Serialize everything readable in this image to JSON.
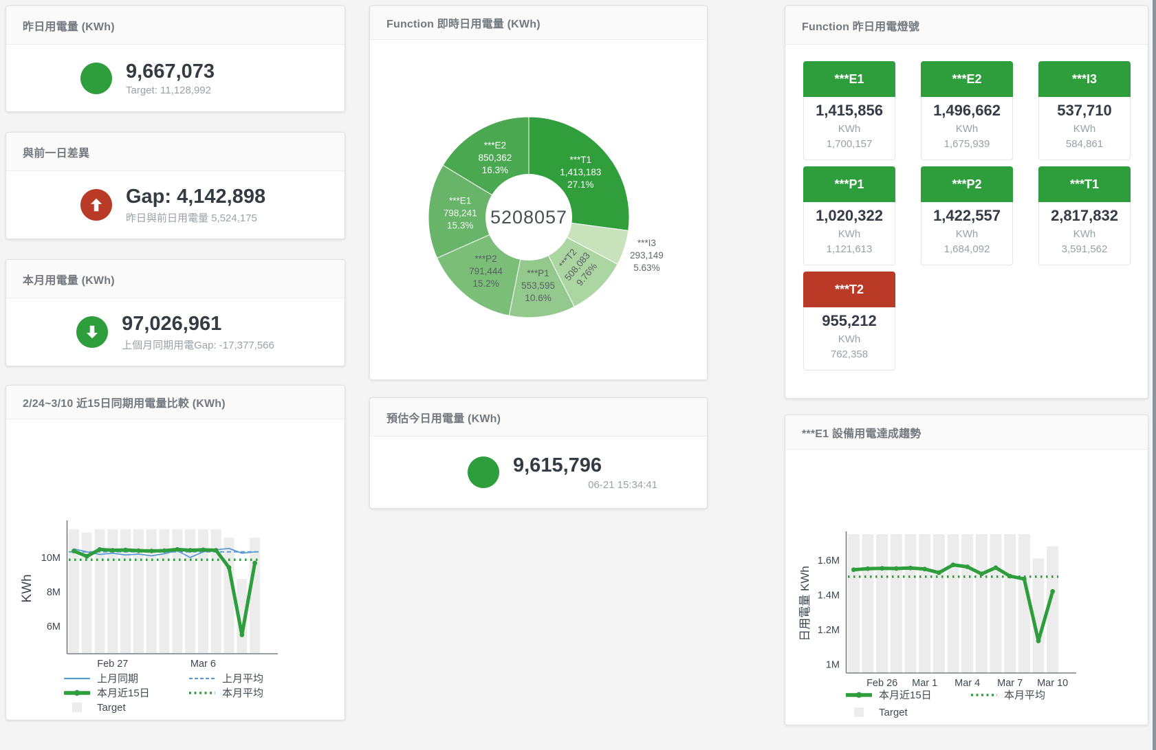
{
  "colors": {
    "green": "#2e9d3c",
    "red": "#b93a26",
    "blue": "#5b9bd5",
    "target_bar": "#ececec",
    "axis": "#7a7f84",
    "tick_text": "#3d4752",
    "legend_text": "#434a52"
  },
  "cards": {
    "yesterday": {
      "title": "昨日用電量 (KWh)",
      "value": "9,667,073",
      "subtitle": "Target: 11,128,992",
      "status": "green"
    },
    "gap": {
      "title": "與前一日差異",
      "value": "Gap: 4,142,898",
      "subtitle": "昨日與前日用電量 5,524,175",
      "status": "red-up"
    },
    "month": {
      "title": "本月用電量 (KWh)",
      "value": "97,026,961",
      "subtitle": "上個月同期用電Gap: -17,377,566",
      "status": "green-down"
    },
    "estimate": {
      "title": "預估今日用電量 (KWh)",
      "value": "9,615,796",
      "subtitle": "06-21 15:34:41",
      "status": "green"
    },
    "compare15": {
      "title": "2/24~3/10 近15日同期用電量比較 (KWh)"
    },
    "donut": {
      "title": "Function 即時日用電量 (KWh)"
    },
    "lamp": {
      "title": "Function 昨日用電燈號"
    },
    "trend": {
      "title": "***E1 設備用電達成趨勢"
    }
  },
  "lamp_tiles": [
    {
      "label": "***E1",
      "value": "1,415,856",
      "unit": "KWh",
      "target": "1,700,157",
      "status": "green"
    },
    {
      "label": "***E2",
      "value": "1,496,662",
      "unit": "KWh",
      "target": "1,675,939",
      "status": "green"
    },
    {
      "label": "***I3",
      "value": "537,710",
      "unit": "KWh",
      "target": "584,861",
      "status": "green"
    },
    {
      "label": "***P1",
      "value": "1,020,322",
      "unit": "KWh",
      "target": "1,121,613",
      "status": "green"
    },
    {
      "label": "***P2",
      "value": "1,422,557",
      "unit": "KWh",
      "target": "1,684,092",
      "status": "green"
    },
    {
      "label": "***T1",
      "value": "2,817,832",
      "unit": "KWh",
      "target": "3,591,562",
      "status": "green"
    },
    {
      "label": "***T2",
      "value": "955,212",
      "unit": "KWh",
      "target": "762,358",
      "status": "red"
    }
  ],
  "chart_data": [
    {
      "id": "donut",
      "type": "pie",
      "title": "Function 即時日用電量 (KWh)",
      "center_total": "5208057",
      "slices": [
        {
          "name": "***T1",
          "value": 1413183,
          "value_label": "1,413,183",
          "pct_label": "27.1%",
          "color": "#2f9e3b",
          "label_color": "#ffffff",
          "label_pos": "inside"
        },
        {
          "name": "***I3",
          "value": 293149,
          "value_label": "293,149",
          "pct_label": "5.63%",
          "color": "#c8e3bc",
          "label_color": "#63686c",
          "label_pos": "outside"
        },
        {
          "name": "***T2",
          "value": 508083,
          "value_label": "508,083",
          "pct_label": "9.76%",
          "color": "#abd5a1",
          "label_color": "#5a5f63",
          "label_pos": "inside",
          "label_rotate": -50
        },
        {
          "name": "***P1",
          "value": 553595,
          "value_label": "553,595",
          "pct_label": "10.6%",
          "color": "#93c98c",
          "label_color": "#5a5f63",
          "label_pos": "inside"
        },
        {
          "name": "***P2",
          "value": 791444,
          "value_label": "791,444",
          "pct_label": "15.2%",
          "color": "#7abe78",
          "label_color": "#5a5f63",
          "label_pos": "inside"
        },
        {
          "name": "***E1",
          "value": 798241,
          "value_label": "798,241",
          "pct_label": "15.3%",
          "color": "#68b569",
          "label_color": "#f2f6f2",
          "label_pos": "inside"
        },
        {
          "name": "***E2",
          "value": 850362,
          "value_label": "850,362",
          "pct_label": "16.3%",
          "color": "#4aa850",
          "label_color": "#ffffff",
          "label_pos": "inside"
        }
      ]
    },
    {
      "id": "compare15",
      "type": "line",
      "title": "2/24~3/10 近15日同期用電量比較 (KWh)",
      "unit": "M KWh",
      "ylabel": "KWh",
      "ylim": [
        4.4,
        12.0
      ],
      "grid": false,
      "legend_position": "bottom",
      "x_count": 15,
      "x_ticks": [
        {
          "index": 3,
          "label": "Feb 27"
        },
        {
          "index": 10,
          "label": "Mar 6"
        }
      ],
      "y_ticks": [
        {
          "value": 6,
          "label": "6M"
        },
        {
          "value": 8,
          "label": "8M"
        },
        {
          "value": 10,
          "label": "10M"
        }
      ],
      "target_bars": [
        11.65,
        11.45,
        11.65,
        11.65,
        11.65,
        11.65,
        11.65,
        11.65,
        11.65,
        11.65,
        11.65,
        11.65,
        11.15,
        8.75,
        11.15
      ],
      "series": [
        {
          "name": "上月同期",
          "style": "thin",
          "color": "#5b9bd5",
          "values": [
            10.5,
            10.33,
            10.18,
            10.25,
            10.15,
            10.2,
            10.1,
            10.22,
            10.4,
            10.0,
            10.33,
            10.45,
            10.53,
            10.25,
            10.33
          ]
        },
        {
          "name": "上月平均",
          "style": "dashed",
          "color": "#5b9bd5",
          "avg": 10.33
        },
        {
          "name": "本月近15日",
          "style": "thick",
          "color": "#2e9d3c",
          "values": [
            10.38,
            10.07,
            10.47,
            10.42,
            10.44,
            10.4,
            10.38,
            10.4,
            10.47,
            10.42,
            10.45,
            10.42,
            9.42,
            5.5,
            9.68
          ]
        },
        {
          "name": "本月平均",
          "style": "dotted",
          "color": "#2e9d3c",
          "avg": 9.87
        },
        {
          "name": "Target",
          "style": "bar",
          "color": "#ececec"
        }
      ]
    },
    {
      "id": "trend",
      "type": "line",
      "title": "***E1 設備用電達成趨勢",
      "unit": "M KWh",
      "ylabel": "日用電量 KWh",
      "ylim": [
        0.95,
        1.75
      ],
      "grid": false,
      "legend_position": "bottom",
      "x_count": 15,
      "x_ticks": [
        {
          "index": 2,
          "label": "Feb 26"
        },
        {
          "index": 5,
          "label": "Mar 1"
        },
        {
          "index": 8,
          "label": "Mar 4"
        },
        {
          "index": 11,
          "label": "Mar 7"
        },
        {
          "index": 14,
          "label": "Mar 10"
        }
      ],
      "y_ticks": [
        {
          "value": 1.0,
          "label": "1M"
        },
        {
          "value": 1.2,
          "label": "1.2M"
        },
        {
          "value": 1.4,
          "label": "1.4M"
        },
        {
          "value": 1.6,
          "label": "1.6M"
        }
      ],
      "target_bars": [
        1.75,
        1.75,
        1.75,
        1.75,
        1.75,
        1.75,
        1.75,
        1.75,
        1.75,
        1.75,
        1.75,
        1.75,
        1.75,
        1.61,
        1.68
      ],
      "series": [
        {
          "name": "本月近15日",
          "style": "thick",
          "color": "#2e9d3c",
          "values": [
            1.545,
            1.551,
            1.553,
            1.552,
            1.555,
            1.549,
            1.528,
            1.573,
            1.562,
            1.521,
            1.557,
            1.508,
            1.492,
            1.135,
            1.42
          ]
        },
        {
          "name": "本月平均",
          "style": "dotted",
          "color": "#2e9d3c",
          "avg": 1.505
        },
        {
          "name": "Target",
          "style": "bar",
          "color": "#ececec"
        }
      ]
    }
  ]
}
